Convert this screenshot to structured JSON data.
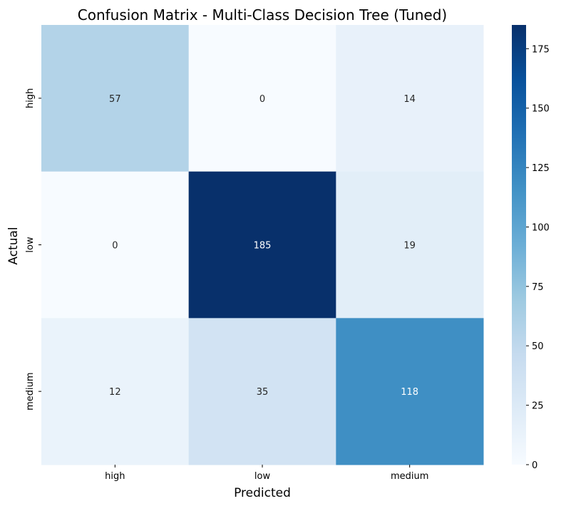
{
  "chart_data": {
    "type": "heatmap",
    "title": "Confusion Matrix - Multi-Class Decision Tree (Tuned)",
    "xlabel": "Predicted",
    "ylabel": "Actual",
    "x_categories": [
      "high",
      "low",
      "medium"
    ],
    "y_categories": [
      "high",
      "low",
      "medium"
    ],
    "values": [
      [
        57,
        0,
        14
      ],
      [
        0,
        185,
        19
      ],
      [
        12,
        35,
        118
      ]
    ],
    "colorbar": {
      "min": 0,
      "max": 185,
      "ticks": [
        0,
        25,
        50,
        75,
        100,
        125,
        150,
        175
      ],
      "colormap": "Blues"
    }
  }
}
